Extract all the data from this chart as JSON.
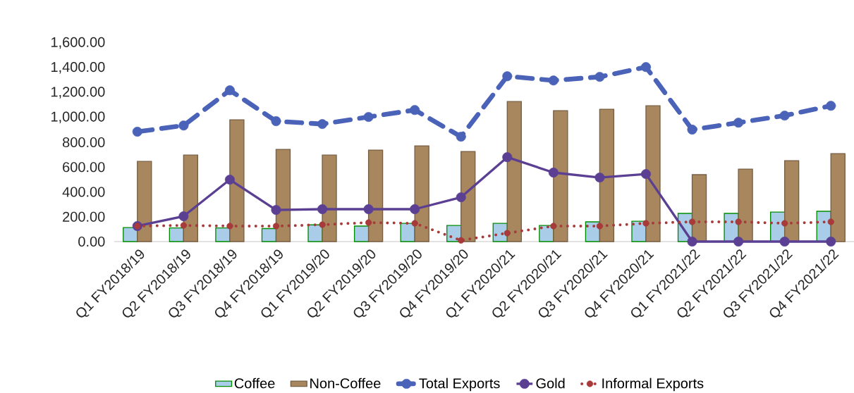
{
  "chart_data": {
    "type": "bar",
    "categories": [
      "Q1 FY2018/19",
      "Q2 FY2018/19",
      "Q3 FY2018/19",
      "Q4 FY2018/19",
      "Q1 FY2019/20",
      "Q2 FY2019/20",
      "Q3 FY2019/20",
      "Q4 FY2019/20",
      "Q1 FY2020/21",
      "Q2 FY2020/21",
      "Q3 FY2020/21",
      "Q4 FY2020/21",
      "Q1 FY2021/22",
      "Q2 FY2021/22",
      "Q3 FY2021/22",
      "Q4 FY2021/22"
    ],
    "series": [
      {
        "name": "Coffee",
        "color": "#a9cde8",
        "values": [
          113,
          110,
          110,
          105,
          135,
          125,
          147,
          130,
          147,
          130,
          159,
          164,
          227,
          227,
          238,
          244
        ]
      },
      {
        "name": "Non-Coffee",
        "color": "#a8875f",
        "values": [
          646,
          697,
          981,
          743,
          697,
          737,
          771,
          726,
          1128,
          1055,
          1066,
          1094,
          539,
          584,
          652,
          709
        ]
      },
      {
        "name": "Total Exports",
        "type": "line",
        "color": "#4a63b8",
        "marker": "circle",
        "line_style": "dashed",
        "values": [
          885,
          935,
          1219,
          970,
          947,
          1004,
          1060,
          845,
          1332,
          1298,
          1327,
          1406,
          902,
          958,
          1015,
          1094
        ]
      },
      {
        "name": "Gold",
        "type": "line",
        "color": "#5a3f93",
        "marker": "circle",
        "line_style": "solid",
        "values": [
          125,
          204,
          499,
          255,
          261,
          261,
          261,
          357,
          680,
          556,
          516,
          544,
          0,
          0,
          0,
          0
        ]
      },
      {
        "name": "Informal Exports",
        "type": "line",
        "color": "#a83a3a",
        "marker": "circle",
        "line_style": "dotted",
        "values": [
          125,
          130,
          125,
          125,
          136,
          153,
          147,
          10,
          68,
          125,
          125,
          147,
          159,
          159,
          147,
          159
        ]
      }
    ],
    "ylim": [
      0,
      1600
    ],
    "yticks": [
      {
        "value": 0,
        "label": "0.00"
      },
      {
        "value": 200,
        "label": "200.00"
      },
      {
        "value": 400,
        "label": "400.00"
      },
      {
        "value": 600,
        "label": "600.00"
      },
      {
        "value": 800,
        "label": "800.00"
      },
      {
        "value": 1000,
        "label": "1,000.00"
      },
      {
        "value": 1200,
        "label": "1,200.00"
      },
      {
        "value": 1400,
        "label": "1,400.00"
      },
      {
        "value": 1600,
        "label": "1,600.00"
      }
    ],
    "legend": "bottom"
  }
}
